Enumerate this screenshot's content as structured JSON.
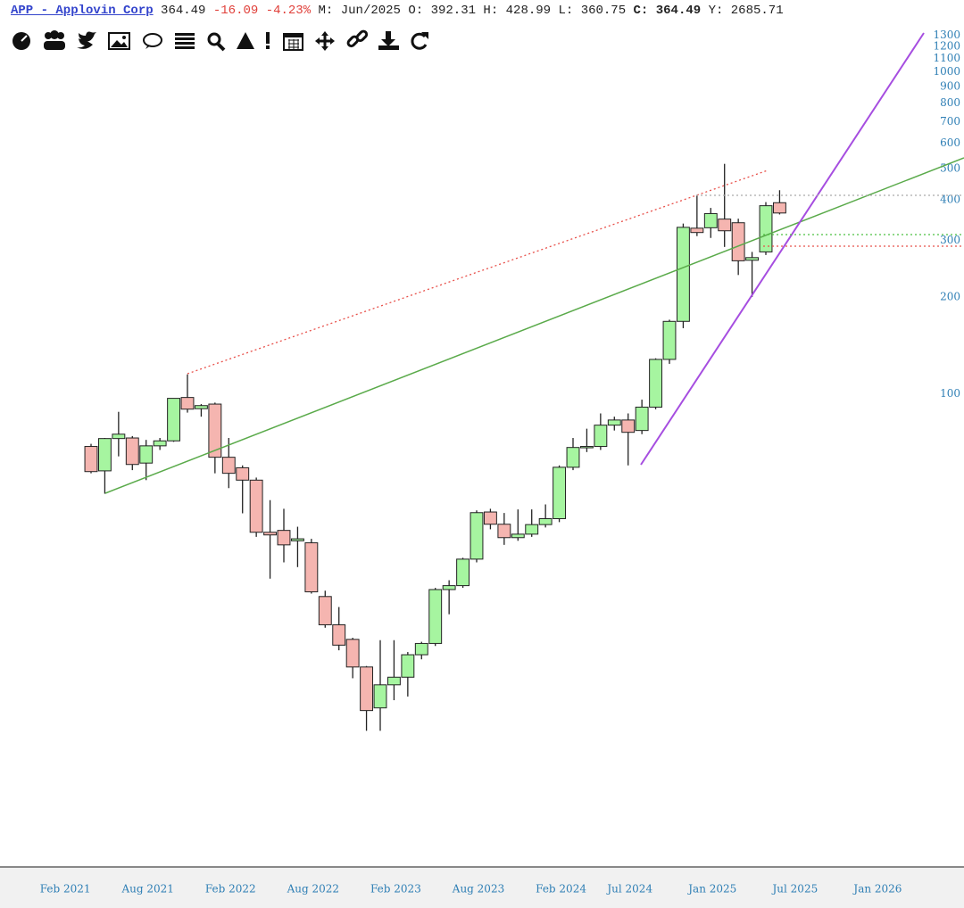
{
  "header": {
    "symbol": "APP - Applovin Corp",
    "last": 364.49,
    "change": -16.09,
    "change_pct": "-4.23%",
    "fields": [
      {
        "label": "M:",
        "value": "Jun/2025"
      },
      {
        "label": "O:",
        "value": 392.31
      },
      {
        "label": "H:",
        "value": 428.99
      },
      {
        "label": "L:",
        "value": 360.75
      },
      {
        "label": "C:",
        "value": 364.49
      },
      {
        "label": "Y:",
        "value": 2685.71
      }
    ]
  },
  "chart_data": {
    "type": "candlestick",
    "log_scale": true,
    "grid": false,
    "up_color": "#a6f5a0",
    "down_color": "#f5b5b0",
    "x": [
      "2021-04",
      "2021-05",
      "2021-06",
      "2021-07",
      "2021-08",
      "2021-09",
      "2021-10",
      "2021-11",
      "2021-12",
      "2022-01",
      "2022-02",
      "2022-03",
      "2022-04",
      "2022-05",
      "2022-06",
      "2022-07",
      "2022-08",
      "2022-09",
      "2022-10",
      "2022-11",
      "2022-12",
      "2023-01",
      "2023-02",
      "2023-03",
      "2023-04",
      "2023-05",
      "2023-06",
      "2023-07",
      "2023-08",
      "2023-09",
      "2023-10",
      "2023-11",
      "2023-12",
      "2024-01",
      "2024-02",
      "2024-03",
      "2024-04",
      "2024-05",
      "2024-06",
      "2024-07",
      "2024-08",
      "2024-09",
      "2024-10",
      "2024-11",
      "2024-12",
      "2025-01",
      "2025-02",
      "2025-03",
      "2025-04",
      "2025-05",
      "2025-06"
    ],
    "open": [
      68.7,
      57.7,
      72.7,
      73,
      61,
      69,
      71.5,
      97.5,
      90,
      93,
      63.6,
      59,
      54,
      37.2,
      37.7,
      35,
      34.5,
      23.5,
      19.2,
      17.3,
      14.2,
      10.6,
      12.5,
      13.2,
      15.5,
      16.8,
      24.7,
      25.4,
      30.7,
      43,
      39.4,
      35.8,
      36.7,
      39.3,
      41,
      59.2,
      68.2,
      68.7,
      80,
      83,
      77,
      91,
      128,
      168,
      327,
      328,
      349,
      340,
      260,
      276,
      392.31
    ],
    "high": [
      70,
      73,
      88,
      74,
      72,
      73,
      97,
      115,
      93,
      94,
      73,
      60,
      55,
      46.8,
      44,
      38.7,
      35.5,
      24.5,
      21.8,
      17.5,
      14.3,
      17.2,
      17.2,
      15.8,
      17,
      25,
      26.4,
      31,
      43.5,
      44,
      42.7,
      43.8,
      43.8,
      45.4,
      60,
      73,
      78,
      87,
      85,
      87,
      96,
      129,
      170,
      338,
      412,
      378,
      518,
      350,
      276,
      394,
      428.99
    ],
    "low": [
      56.7,
      49,
      64,
      58,
      54,
      67,
      71,
      87.5,
      85,
      56.7,
      51,
      42.6,
      36,
      26.7,
      30,
      29,
      24,
      18.8,
      16,
      13.1,
      9,
      9,
      11.2,
      11.5,
      15,
      16.5,
      20.7,
      25,
      30,
      38,
      34,
      35,
      36,
      38.5,
      40,
      58,
      66,
      67,
      77,
      60,
      75,
      89.6,
      124,
      160,
      309,
      305,
      286,
      234,
      200,
      270,
      360.75
    ],
    "close": [
      57.4,
      72.7,
      75,
      60.4,
      69,
      71.5,
      96.9,
      89.7,
      92,
      63.6,
      56.7,
      54,
      37.2,
      36.5,
      34,
      35.5,
      24.3,
      19.2,
      16.6,
      14.2,
      10.4,
      12.5,
      13.2,
      15.5,
      16.8,
      24.7,
      25.4,
      30.7,
      42.8,
      39.4,
      35.8,
      36.7,
      39.3,
      41,
      59.2,
      68.2,
      68.7,
      80,
      83,
      76,
      91,
      128,
      168,
      329,
      317,
      363,
      321,
      259,
      265,
      384,
      364.49
    ],
    "xlim": [
      "2020-09",
      "2026-07"
    ],
    "xticks": [
      {
        "value": "2021-02",
        "label": "Feb 2021"
      },
      {
        "value": "2021-08",
        "label": "Aug 2021"
      },
      {
        "value": "2022-02",
        "label": "Feb 2022"
      },
      {
        "value": "2022-08",
        "label": "Aug 2022"
      },
      {
        "value": "2023-02",
        "label": "Feb 2023"
      },
      {
        "value": "2023-08",
        "label": "Aug 2023"
      },
      {
        "value": "2024-02",
        "label": "Feb 2024"
      },
      {
        "value": "2024-07",
        "label": "Jul 2024"
      },
      {
        "value": "2025-01",
        "label": "Jan 2025"
      },
      {
        "value": "2025-07",
        "label": "Jul 2025"
      },
      {
        "value": "2026-01",
        "label": "Jan 2026"
      }
    ],
    "ylim": [
      3.4,
      1380
    ],
    "yticks": [
      100,
      200,
      300,
      400,
      500,
      600,
      700,
      800,
      900,
      1000,
      1100,
      1200,
      1300
    ]
  }
}
